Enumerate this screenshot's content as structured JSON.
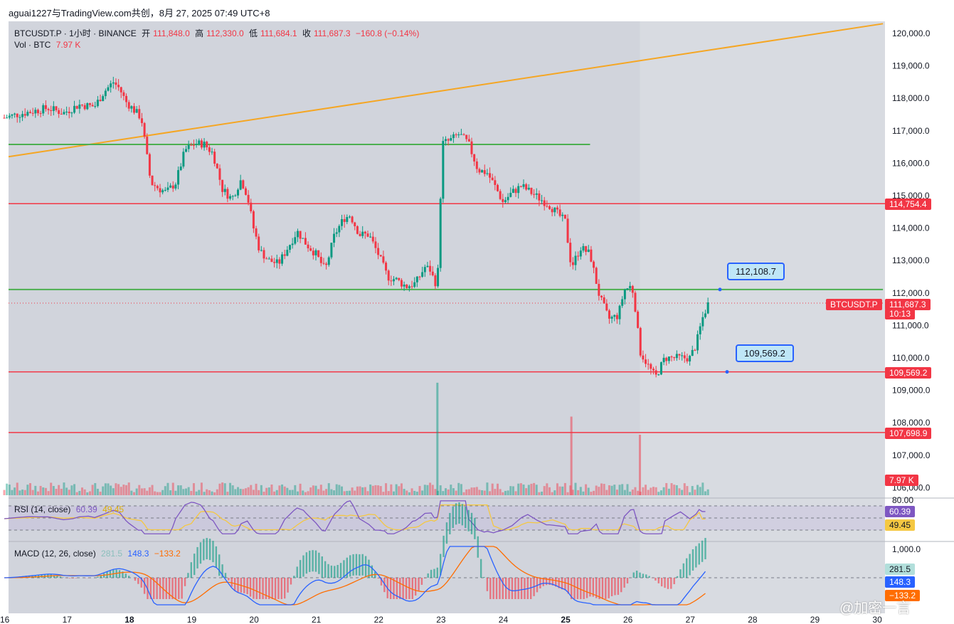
{
  "share_title": "aguai1227与TradingView.com共创，8月 27, 2025 07:49 UTC+8",
  "legend": {
    "symbol": "BTCUSDT.P · 1小时 · BINANCE",
    "open_label": "开",
    "open_value": "111,848.0",
    "high_label": "高",
    "high_value": "112,330.0",
    "low_label": "低",
    "low_value": "111,684.1",
    "close_label": "收",
    "close_value": "111,687.3",
    "change": "−160.8 (−0.14%)",
    "vol_label": "Vol · BTC",
    "vol_value": "7.97 K"
  },
  "rsi_legend": {
    "label": "RSI (14, close)",
    "value": "60.39",
    "ma_value": "49.45"
  },
  "macd_legend": {
    "label": "MACD (12, 26, close)",
    "hist_value": "281.5",
    "macd_value": "148.3",
    "signal_value": "−133.2"
  },
  "price_tags": {
    "r1": "114,754.4",
    "s1": "109,569.2",
    "s2": "107,698.9",
    "current_symbol": "BTCUSDT.P",
    "current_price": "111,687.3",
    "countdown": "10:13",
    "volume": "7.97 K",
    "rsi": "60.39",
    "rsi_ma": "49.45",
    "macd_hist": "281.5",
    "macd": "148.3",
    "macd_signal": "−133.2"
  },
  "callouts": {
    "upper": "112,108.7",
    "lower": "109,569.2"
  },
  "rsi_axis": {
    "top": "80.00"
  },
  "macd_axis": {
    "top": "1,000.0"
  },
  "watermark": "@加密一言",
  "colors": {
    "up": "#089981",
    "down": "#f23645",
    "support": "#4caf50",
    "resistance": "#f23645",
    "trendline": "#f5a623",
    "rsi": "#7e57c2",
    "rsi_ma": "#f5c842",
    "macd": "#2962ff",
    "signal": "#ff6d00"
  },
  "chart_data": {
    "type": "candlestick",
    "xlabel": "",
    "ylabel": "",
    "interval": "1h",
    "x_ticks": [
      "16",
      "17",
      "18",
      "19",
      "20",
      "21",
      "22",
      "23",
      "24",
      "25",
      "26",
      "27",
      "28",
      "29",
      "30"
    ],
    "y_ticks": [
      106000,
      107000,
      108000,
      109000,
      110000,
      111000,
      112000,
      113000,
      114000,
      115000,
      116000,
      117000,
      118000,
      119000,
      120000
    ],
    "ylim": [
      105800,
      120400
    ],
    "xlim": [
      16,
      30
    ],
    "price_path": [
      [
        16.0,
        117400
      ],
      [
        16.2,
        117500
      ],
      [
        16.45,
        117600
      ],
      [
        16.7,
        117700
      ],
      [
        16.95,
        117550
      ],
      [
        17.2,
        117800
      ],
      [
        17.45,
        117750
      ],
      [
        17.6,
        118200
      ],
      [
        17.75,
        118500
      ],
      [
        17.85,
        118300
      ],
      [
        17.95,
        117900
      ],
      [
        18.2,
        117400
      ],
      [
        18.35,
        115400
      ],
      [
        18.5,
        115200
      ],
      [
        18.6,
        115100
      ],
      [
        18.75,
        115400
      ],
      [
        18.9,
        116400
      ],
      [
        19.05,
        116600
      ],
      [
        19.2,
        116600
      ],
      [
        19.35,
        116300
      ],
      [
        19.5,
        115200
      ],
      [
        19.65,
        114900
      ],
      [
        19.8,
        115500
      ],
      [
        19.9,
        115000
      ],
      [
        20.0,
        114000
      ],
      [
        20.1,
        113300
      ],
      [
        20.25,
        113000
      ],
      [
        20.4,
        112900
      ],
      [
        20.55,
        113400
      ],
      [
        20.7,
        113900
      ],
      [
        20.85,
        113500
      ],
      [
        21.0,
        113200
      ],
      [
        21.15,
        112700
      ],
      [
        21.3,
        113800
      ],
      [
        21.45,
        114300
      ],
      [
        21.55,
        114400
      ],
      [
        21.7,
        113800
      ],
      [
        21.85,
        113800
      ],
      [
        22.0,
        113200
      ],
      [
        22.15,
        112500
      ],
      [
        22.3,
        112400
      ],
      [
        22.45,
        112200
      ],
      [
        22.6,
        112300
      ],
      [
        22.75,
        112800
      ],
      [
        22.85,
        112700
      ],
      [
        22.9,
        112300
      ],
      [
        22.95,
        112400
      ],
      [
        22.98,
        113400
      ],
      [
        23.02,
        116600
      ],
      [
        23.15,
        116700
      ],
      [
        23.3,
        116900
      ],
      [
        23.45,
        116600
      ],
      [
        23.6,
        115800
      ],
      [
        23.75,
        115700
      ],
      [
        23.9,
        115200
      ],
      [
        24.0,
        114800
      ],
      [
        24.15,
        115100
      ],
      [
        24.3,
        115300
      ],
      [
        24.45,
        115100
      ],
      [
        24.6,
        114900
      ],
      [
        24.75,
        114700
      ],
      [
        24.9,
        114400
      ],
      [
        25.0,
        114200
      ],
      [
        25.1,
        112800
      ],
      [
        25.25,
        113400
      ],
      [
        25.4,
        113200
      ],
      [
        25.55,
        111900
      ],
      [
        25.7,
        111200
      ],
      [
        25.85,
        111300
      ],
      [
        25.95,
        112100
      ],
      [
        26.05,
        112200
      ],
      [
        26.1,
        112000
      ],
      [
        26.2,
        110200
      ],
      [
        26.35,
        109700
      ],
      [
        26.45,
        109400
      ],
      [
        26.6,
        110000
      ],
      [
        26.75,
        110000
      ],
      [
        26.9,
        110000
      ],
      [
        27.0,
        110000
      ],
      [
        27.1,
        110400
      ],
      [
        27.2,
        111200
      ],
      [
        27.3,
        111700
      ]
    ],
    "annotations": {
      "trendline": [
        [
          16.0,
          116200
        ],
        [
          30.1,
          120300
        ]
      ],
      "resistance_lines": [
        114754.4,
        109569.2,
        107698.9
      ],
      "support_lines": [
        {
          "price": 116580,
          "from": 16.0,
          "to": 25.4
        },
        {
          "price": 112108.7,
          "from": 16.0,
          "to": 30.1
        }
      ],
      "current_price": 111687.3
    },
    "volume_spikes": [
      {
        "x": 22.95,
        "value": 9.3
      },
      {
        "x": 25.1,
        "value": 6.5
      },
      {
        "x": 26.2,
        "value": 5.0
      }
    ],
    "rsi": {
      "ylim": [
        20,
        80
      ],
      "last": 60.39,
      "ma_last": 49.45
    },
    "macd": {
      "ytop": 1000,
      "histogram_last": 281.5,
      "macd_last": 148.3,
      "signal_last": -133.2
    }
  }
}
